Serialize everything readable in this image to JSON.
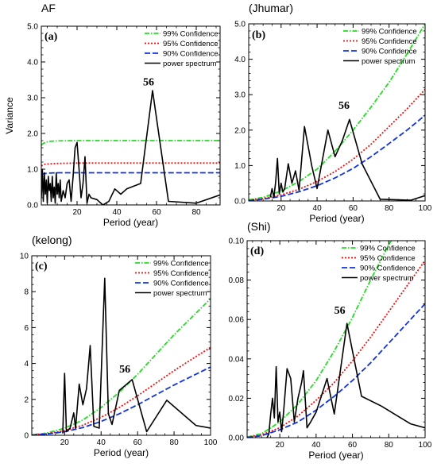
{
  "legend_labels": [
    "99% Confidence",
    "95% Confidence",
    "90% Confidence",
    "power spectrum"
  ],
  "series_colors": {
    "c99": "#22dd22",
    "c95": "#ee1111",
    "c90": "#1133dd",
    "power": "#000000"
  },
  "chart_data": [
    {
      "type": "line",
      "panel": "(a)",
      "title": "AF",
      "xlabel": "Period (year)",
      "ylabel": "Variance",
      "xlim": [
        2,
        92
      ],
      "ylim": [
        0,
        5
      ],
      "xticks": [
        20,
        40,
        60,
        80
      ],
      "yticks": [
        0,
        1,
        2,
        3,
        4,
        5
      ],
      "ytick_labels": [
        "0.0",
        "1.0",
        "2.0",
        "3.0",
        "4.0",
        "5.0"
      ],
      "peak_label": "56",
      "peak_label_at": [
        56,
        3.35
      ],
      "series": [
        {
          "key": "c99",
          "name": "99% Confidence",
          "x": [
            2,
            3,
            4,
            6,
            10,
            20,
            40,
            60,
            92
          ],
          "y": [
            1.67,
            1.72,
            1.75,
            1.78,
            1.79,
            1.8,
            1.8,
            1.8,
            1.8
          ]
        },
        {
          "key": "c95",
          "name": "95% Confidence",
          "x": [
            2,
            3,
            4,
            6,
            10,
            20,
            40,
            60,
            92
          ],
          "y": [
            1.09,
            1.12,
            1.14,
            1.15,
            1.16,
            1.17,
            1.17,
            1.17,
            1.17
          ]
        },
        {
          "key": "c90",
          "name": "90% Confidence",
          "x": [
            2,
            3,
            4,
            6,
            10,
            20,
            40,
            60,
            92
          ],
          "y": [
            0.85,
            0.87,
            0.88,
            0.89,
            0.9,
            0.9,
            0.9,
            0.9,
            0.9
          ]
        },
        {
          "key": "power",
          "name": "power spectrum",
          "x": [
            2,
            2.5,
            3,
            3.5,
            4,
            4.5,
            5,
            5.5,
            6,
            6.5,
            7,
            7.5,
            8,
            8.5,
            9,
            9.5,
            10,
            10.5,
            11,
            11.5,
            12,
            13,
            14,
            15,
            16,
            17,
            18,
            19,
            20,
            21,
            22,
            23,
            24,
            25,
            26,
            27,
            30,
            33,
            36,
            39,
            42,
            45,
            52,
            58,
            66,
            80,
            92
          ],
          "y": [
            0.2,
            1.0,
            0.1,
            0.9,
            0.3,
            0.7,
            0.05,
            0.8,
            0.4,
            0.6,
            0.1,
            0.8,
            0.2,
            0.5,
            0.05,
            0.9,
            0.3,
            0.6,
            0.2,
            0.7,
            0.1,
            0.4,
            0.2,
            0.6,
            0.7,
            0.1,
            0.8,
            1.6,
            1.75,
            1.0,
            0.2,
            0.6,
            1.35,
            0.05,
            0.3,
            0.2,
            0.15,
            0.0,
            0.1,
            0.45,
            0.3,
            0.45,
            0.6,
            3.2,
            0.1,
            0.05,
            0.28
          ]
        }
      ]
    },
    {
      "type": "line",
      "panel": "(b)",
      "title": "(Jhumar)",
      "xlabel": "Period (year)",
      "ylabel": "",
      "xlim": [
        2,
        100
      ],
      "ylim": [
        0,
        5
      ],
      "xticks": [
        20,
        40,
        60,
        80,
        100
      ],
      "yticks": [
        0,
        1,
        2,
        3,
        4,
        5
      ],
      "ytick_labels": [
        "0.0",
        "1.0",
        "2.0",
        "3.0",
        "4.0",
        "5.0"
      ],
      "peak_label": "56",
      "peak_label_at": [
        55,
        2.6
      ],
      "series": [
        {
          "key": "c99",
          "name": "99% Confidence",
          "x": [
            2,
            10,
            20,
            30,
            40,
            50,
            60,
            70,
            80,
            90,
            100
          ],
          "y": [
            0.03,
            0.1,
            0.28,
            0.55,
            0.9,
            1.4,
            2.0,
            2.65,
            3.35,
            4.15,
            5.0
          ]
        },
        {
          "key": "c95",
          "name": "95% Confidence",
          "x": [
            2,
            10,
            20,
            30,
            40,
            50,
            60,
            70,
            80,
            90,
            100
          ],
          "y": [
            0.02,
            0.07,
            0.17,
            0.33,
            0.55,
            0.83,
            1.18,
            1.6,
            2.1,
            2.6,
            3.15
          ]
        },
        {
          "key": "c90",
          "name": "90% Confidence",
          "x": [
            2,
            10,
            20,
            30,
            40,
            50,
            60,
            70,
            80,
            90,
            100
          ],
          "y": [
            0.01,
            0.05,
            0.13,
            0.26,
            0.43,
            0.65,
            0.92,
            1.25,
            1.62,
            2.0,
            2.42
          ]
        },
        {
          "key": "power",
          "name": "power spectrum",
          "x": [
            14,
            15,
            16,
            17,
            18,
            19,
            20,
            21,
            22,
            24,
            26,
            28,
            30,
            33,
            37,
            40,
            46,
            50,
            54,
            58,
            65,
            75,
            92,
            100
          ],
          "y": [
            0.1,
            0.35,
            0.1,
            0.55,
            1.2,
            0.2,
            0.5,
            0.25,
            0.35,
            1.05,
            0.5,
            0.85,
            0.3,
            2.1,
            1.0,
            0.35,
            2.0,
            1.25,
            1.7,
            2.3,
            1.05,
            0.05,
            0.02,
            0.15
          ]
        }
      ]
    },
    {
      "type": "line",
      "panel": "(c)",
      "title": "(kelong)",
      "xlabel": "Period (year)",
      "ylabel": "",
      "xlim": [
        2,
        100
      ],
      "ylim": [
        0,
        10
      ],
      "xticks": [
        20,
        40,
        60,
        80,
        100
      ],
      "yticks": [
        0,
        2,
        4,
        6,
        8,
        10
      ],
      "ytick_labels": [
        "0",
        "2",
        "4",
        "6",
        "8",
        "10"
      ],
      "peak_label": "56",
      "peak_label_at": [
        53,
        3.5
      ],
      "series": [
        {
          "key": "c99",
          "name": "99% Confidence",
          "x": [
            2,
            10,
            20,
            30,
            40,
            50,
            60,
            70,
            80,
            90,
            100
          ],
          "y": [
            0.02,
            0.12,
            0.4,
            0.85,
            1.55,
            2.4,
            3.4,
            4.5,
            5.6,
            6.6,
            7.6
          ]
        },
        {
          "key": "c95",
          "name": "95% Confidence",
          "x": [
            2,
            10,
            20,
            30,
            40,
            50,
            60,
            70,
            80,
            90,
            100
          ],
          "y": [
            0.02,
            0.08,
            0.26,
            0.56,
            1.0,
            1.55,
            2.2,
            2.9,
            3.6,
            4.25,
            4.9
          ]
        },
        {
          "key": "c90",
          "name": "90% Confidence",
          "x": [
            2,
            10,
            20,
            30,
            40,
            50,
            60,
            70,
            80,
            90,
            100
          ],
          "y": [
            0.01,
            0.06,
            0.2,
            0.43,
            0.77,
            1.2,
            1.7,
            2.25,
            2.8,
            3.3,
            3.8
          ]
        },
        {
          "key": "power",
          "name": "power spectrum",
          "x": [
            19,
            20,
            21,
            23,
            25,
            26,
            28,
            30,
            32,
            34,
            36,
            39,
            42,
            44,
            46,
            50,
            57,
            65,
            76,
            92,
            100
          ],
          "y": [
            0.1,
            3.45,
            0.2,
            0.4,
            1.25,
            0.4,
            2.85,
            1.7,
            2.6,
            5.0,
            0.5,
            0.4,
            8.75,
            1.2,
            0.6,
            2.5,
            3.1,
            0.2,
            1.95,
            0.55,
            0.4
          ]
        }
      ]
    },
    {
      "type": "line",
      "panel": "(d)",
      "title": "(Shi)",
      "xlabel": "Period (year)",
      "ylabel": "",
      "xlim": [
        2,
        100
      ],
      "ylim": [
        0,
        0.1
      ],
      "xticks": [
        20,
        40,
        60,
        80,
        100
      ],
      "yticks": [
        0,
        0.02,
        0.04,
        0.06,
        0.08,
        0.1
      ],
      "ytick_labels": [
        "0.00",
        "0.02",
        "0.04",
        "0.06",
        "0.08",
        "0.10"
      ],
      "peak_label": "56",
      "peak_label_at": [
        53,
        0.063
      ],
      "series": [
        {
          "key": "c99",
          "name": "99% Confidence",
          "x": [
            2,
            10,
            20,
            30,
            40,
            50,
            60,
            70,
            80,
            84
          ],
          "y": [
            0.0003,
            0.002,
            0.008,
            0.017,
            0.029,
            0.044,
            0.061,
            0.08,
            0.098,
            0.104
          ]
        },
        {
          "key": "c95",
          "name": "95% Confidence",
          "x": [
            2,
            10,
            20,
            30,
            40,
            50,
            60,
            70,
            80,
            90,
            100
          ],
          "y": [
            0.0002,
            0.0015,
            0.005,
            0.011,
            0.019,
            0.028,
            0.039,
            0.051,
            0.064,
            0.077,
            0.09
          ]
        },
        {
          "key": "c90",
          "name": "90% Confidence",
          "x": [
            2,
            10,
            20,
            30,
            40,
            50,
            60,
            70,
            80,
            90,
            100
          ],
          "y": [
            0.0001,
            0.001,
            0.004,
            0.008,
            0.014,
            0.021,
            0.029,
            0.038,
            0.048,
            0.058,
            0.068
          ]
        },
        {
          "key": "power",
          "name": "power spectrum",
          "x": [
            13,
            14,
            15,
            16,
            17,
            18,
            19,
            20,
            21,
            22,
            24,
            26,
            28,
            30,
            32,
            33,
            35,
            37,
            40,
            46,
            50,
            57,
            65,
            76,
            92,
            100
          ],
          "y": [
            0.0,
            0.002,
            0.012,
            0.02,
            0.01,
            0.036,
            0.008,
            0.013,
            0.003,
            0.012,
            0.035,
            0.03,
            0.008,
            0.02,
            0.028,
            0.034,
            0.005,
            0.008,
            0.013,
            0.03,
            0.012,
            0.058,
            0.021,
            0.016,
            0.007,
            0.005
          ]
        }
      ]
    }
  ]
}
